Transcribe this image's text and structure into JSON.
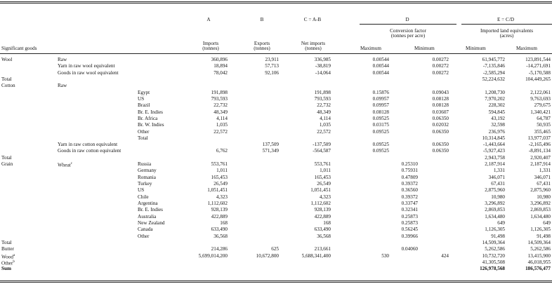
{
  "headers": {
    "col_letters": [
      "A",
      "B",
      "C = A-B",
      "D",
      "E = C/D"
    ],
    "significant_goods": "Significant goods",
    "imports": [
      "Imports",
      "(tonnes)"
    ],
    "exports": [
      "Exports",
      "(tonnes)"
    ],
    "net_imports": [
      "Net imports",
      "(tonnes)"
    ],
    "conversion_factor": [
      "Conversion factor",
      "(tonnes per acre)"
    ],
    "imported_land": [
      "Imported land equivalents",
      "(acres)"
    ],
    "maximum": "Maximum",
    "minimum": "Minimum"
  },
  "rows": [
    {
      "c1": "Wool",
      "c2": "Raw",
      "c3": "",
      "a": "360,896",
      "b": "23,911",
      "c": "336,985",
      "dmax": "0.00544",
      "dmin": "0.00272",
      "emin": "61,945,772",
      "emax": "123,891,544"
    },
    {
      "c1": "",
      "c2": "Yarn in raw wool equivalent",
      "c3": "",
      "a": "18,894",
      "b": "57,713",
      "c": "-38,819",
      "dmax": "0.00544",
      "dmin": "0.00272",
      "emin": "-7,135,846",
      "emax": "-14,271,691"
    },
    {
      "c1": "",
      "c2": "Goods in raw wool equivalent",
      "c3": "",
      "a": "78,042",
      "b": "92,106",
      "c": "-14,064",
      "dmax": "0.00544",
      "dmin": "0.00272",
      "emin": "-2,585,294",
      "emax": "-5,170,588"
    },
    {
      "c1": "Total",
      "c2": "",
      "c3": "",
      "a": "",
      "b": "",
      "c": "",
      "dmax": "",
      "dmin": "",
      "emin": "52,224,632",
      "emax": "104,449,265"
    },
    {
      "c1": "Cotton",
      "c2": "Raw",
      "c3": "",
      "a": "",
      "b": "",
      "c": "",
      "dmax": "",
      "dmin": "",
      "emin": "",
      "emax": ""
    },
    {
      "c1": "",
      "c2": "",
      "c3": "Egypt",
      "a": "191,898",
      "b": "",
      "c": "191,898",
      "dmax": "0.15876",
      "dmin": "0.09043",
      "emin": "1,208,730",
      "emax": "2,122,061"
    },
    {
      "c1": "",
      "c2": "",
      "c3": "US",
      "a": "793,593",
      "b": "",
      "c": "793,593",
      "dmax": "0.09957",
      "dmin": "0.08128",
      "emin": "7,970,202",
      "emax": "9,763,693"
    },
    {
      "c1": "",
      "c2": "",
      "c3": "Brazil",
      "a": "22,732",
      "b": "",
      "c": "22,732",
      "dmax": "0.09957",
      "dmin": "0.08128",
      "emin": "228,302",
      "emax": "279,675"
    },
    {
      "c1": "",
      "c2": "",
      "c3": "Br. E. Indies",
      "a": "48,349",
      "b": "",
      "c": "48,349",
      "dmax": "0.08128",
      "dmin": "0.03607",
      "emin": "594,845",
      "emax": "1,340,421"
    },
    {
      "c1": "",
      "c2": "",
      "c3": "Br. Africa",
      "a": "4,114",
      "b": "",
      "c": "4,114",
      "dmax": "0.09525",
      "dmin": "0.06350",
      "emin": "43,192",
      "emax": "64,787"
    },
    {
      "c1": "",
      "c2": "",
      "c3": "Br. W. Indies",
      "a": "1,035",
      "b": "",
      "c": "1,035",
      "dmax": "0.03175",
      "dmin": "0.02032",
      "emin": "32,598",
      "emax": "50,935"
    },
    {
      "c1": "",
      "c2": "",
      "c3": "Other",
      "a": "22,572",
      "b": "",
      "c": "22,572",
      "dmax": "0.09525",
      "dmin": "0.06350",
      "emin": "236,976",
      "emax": "355,465"
    },
    {
      "c1": "",
      "c2": "",
      "c3": "Total",
      "a": "",
      "b": "",
      "c": "",
      "dmax": "",
      "dmin": "",
      "emin": "10,314,845",
      "emax": "13,977,037"
    },
    {
      "c1": "",
      "c2": "Yarn in raw cotton equivalent",
      "c3": "",
      "a": "",
      "b": "137,509",
      "c": "-137,509",
      "dmax": "0.09525",
      "dmin": "0.06350",
      "emin": "-1,443,664",
      "emax": "-2,165,496"
    },
    {
      "c1": "",
      "c2": "Goods in raw cotton equivalent",
      "c3": "",
      "a": "6,762",
      "b": "571,349",
      "c": "-564,587",
      "dmax": "0.09525",
      "dmin": "0.06350",
      "emin": "-5,927,423",
      "emax": "-8,891,134"
    },
    {
      "c1": "Total",
      "c2": "",
      "c3": "",
      "a": "",
      "b": "",
      "c": "",
      "dmax": "",
      "dmin": "",
      "emin": "2,943,758",
      "emax": "2,920,407"
    },
    {
      "c1": "Grain",
      "c2": "Wheat",
      "sup2": "c",
      "c3": "Russia",
      "a": "553,761",
      "b": "",
      "c": "553,761",
      "dmid": "0.25310",
      "emin": "2,187,914",
      "emax": "2,187,914"
    },
    {
      "c1": "",
      "c2": "",
      "c3": "Germany",
      "a": "1,011",
      "b": "",
      "c": "1,011",
      "dmid": "0.75931",
      "emin": "1,331",
      "emax": "1,331"
    },
    {
      "c1": "",
      "c2": "",
      "c3": "Romania",
      "a": "165,453",
      "b": "",
      "c": "165,453",
      "dmid": "0.47809",
      "emin": "346,071",
      "emax": "346,071"
    },
    {
      "c1": "",
      "c2": "",
      "c3": "Turkey",
      "a": "26,549",
      "b": "",
      "c": "26,549",
      "dmid": "0.39372",
      "emin": "67,431",
      "emax": "67,431"
    },
    {
      "c1": "",
      "c2": "",
      "c3": "US",
      "a": "1,051,451",
      "b": "",
      "c": "1,051,451",
      "dmid": "0.36560",
      "emin": "2,875,960",
      "emax": "2,875,960"
    },
    {
      "c1": "",
      "c2": "",
      "c3": "Chile",
      "a": "4,323",
      "b": "",
      "c": "4,323",
      "dmid": "0.39372",
      "emin": "10,980",
      "emax": "10,980"
    },
    {
      "c1": "",
      "c2": "",
      "c3": "Argentina",
      "a": "1,112,602",
      "b": "",
      "c": "1,112,602",
      "dmid": "0.33747",
      "emin": "3,296,892",
      "emax": "3,296,892"
    },
    {
      "c1": "",
      "c2": "",
      "c3": "Br. E. Indies",
      "a": "928,139",
      "b": "",
      "c": "928,139",
      "dmid": "0.32341",
      "emin": "2,869,853",
      "emax": "2,869,853"
    },
    {
      "c1": "",
      "c2": "",
      "c3": "Australia",
      "a": "422,889",
      "b": "",
      "c": "422,889",
      "dmid": "0.25873",
      "emin": "1,634,480",
      "emax": "1,634,480"
    },
    {
      "c1": "",
      "c2": "",
      "c3": "New Zealand",
      "a": "168",
      "b": "",
      "c": "168",
      "dmid": "0.25873",
      "emin": "649",
      "emax": "649"
    },
    {
      "c1": "",
      "c2": "",
      "c3": "Canada",
      "a": "633,490",
      "b": "",
      "c": "633,490",
      "dmid": "0.56245",
      "emin": "1,126,305",
      "emax": "1,126,305"
    },
    {
      "c1": "",
      "c2": "",
      "c3": "Other",
      "a": "36,568",
      "b": "",
      "c": "36,568",
      "dmid": "0.39966",
      "emin": "91,498",
      "emax": "91,498"
    },
    {
      "c1": "Total",
      "c2": "",
      "c3": "",
      "a": "",
      "b": "",
      "c": "",
      "emin": "14,509,364",
      "emax": "14,509,364"
    },
    {
      "c1": "Butter",
      "c2": "",
      "c3": "",
      "a": "214,286",
      "b": "625",
      "c": "213,661",
      "dmid": "0.04060",
      "emin": "5,262,586",
      "emax": "5,262,586"
    },
    {
      "c1": "Wood",
      "sup1": "a",
      "c2": "",
      "c3": "",
      "a": "5,699,014,200",
      "b": "10,672,800",
      "c": "5,688,341,400",
      "dmax": "530",
      "dmin": "424",
      "emin": "10,732,720",
      "emax": "13,415,900"
    },
    {
      "c1": "Other",
      "sup1": "b",
      "c2": "",
      "c3": "",
      "a": "",
      "b": "",
      "c": "",
      "emin": "41,305,508",
      "emax": "46,018,955"
    },
    {
      "c1": "Sum",
      "c2": "",
      "c3": "",
      "a": "",
      "b": "",
      "c": "",
      "emin": "126,978,568",
      "emax": "186,576,477",
      "bold": true
    }
  ]
}
